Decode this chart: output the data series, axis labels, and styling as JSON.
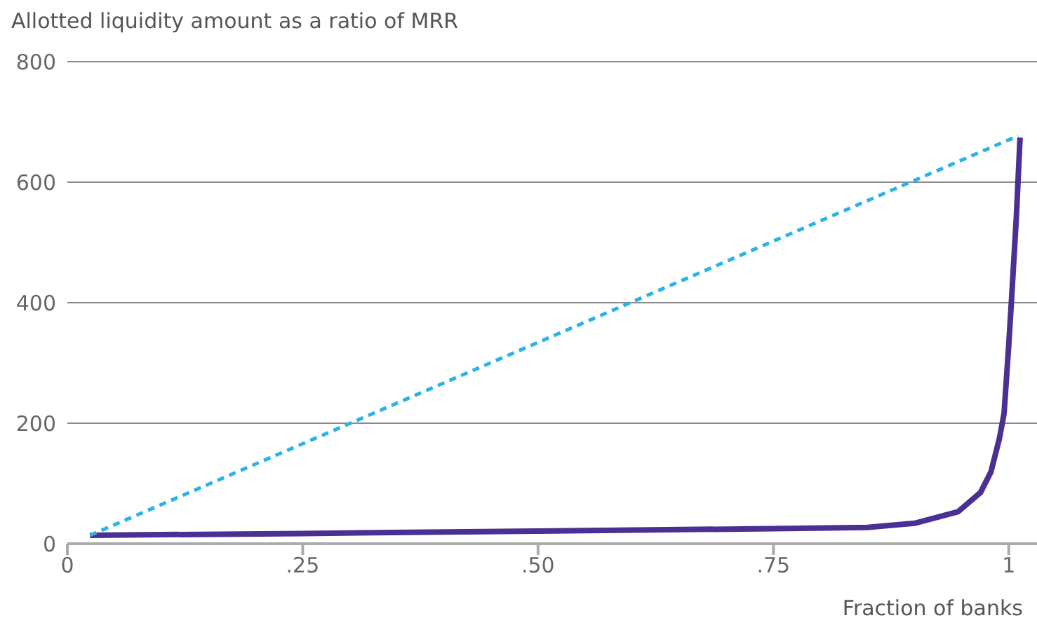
{
  "chart_data": {
    "type": "line",
    "ylabel": "Allotted liquidity amount as a ratio of MRR",
    "xlabel": "Fraction of banks",
    "xlim": [
      0,
      1.03
    ],
    "xticks": [
      0,
      {
        "value": 0.25,
        "label": ".25"
      },
      {
        "value": 0.5,
        "label": ".50"
      },
      {
        "value": 0.75,
        "label": ".75"
      },
      1
    ],
    "ylim": [
      0,
      800
    ],
    "yticks": [
      0,
      200,
      400,
      600,
      800
    ],
    "grid": "y",
    "legend": false,
    "marker": "none",
    "series": [
      {
        "color": "#4b2f92",
        "line_style": "solid",
        "x": [
          0.024,
          0.25,
          0.5,
          0.75,
          0.85,
          0.9,
          0.946,
          0.97,
          0.981,
          0.99,
          0.995,
          1.0,
          1.003,
          1.008,
          1.012
        ],
        "values": [
          14,
          17,
          21,
          25,
          27,
          34,
          53,
          85,
          119,
          174,
          216,
          330,
          407,
          540,
          674
        ]
      },
      {
        "color": "#2ab3e6",
        "line_style": "dashed",
        "x": [
          0.024,
          1.01
        ],
        "values": [
          14,
          677
        ]
      }
    ]
  }
}
